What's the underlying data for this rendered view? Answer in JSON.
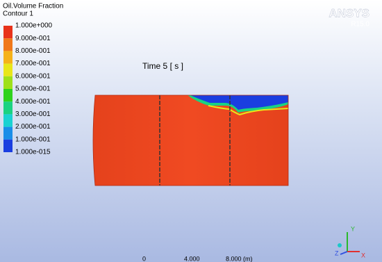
{
  "header": {
    "variable": "Oil.Volume Fraction",
    "contour": "Contour 1"
  },
  "legend": {
    "labels": [
      "1.000e+000",
      "9.000e-001",
      "8.000e-001",
      "7.000e-001",
      "6.000e-001",
      "5.000e-001",
      "4.000e-001",
      "3.000e-001",
      "2.000e-001",
      "1.000e-001",
      "1.000e-015"
    ]
  },
  "brand": {
    "name": "ANSYS",
    "version": "R15.0"
  },
  "time_label": "Time 5 [ s ]",
  "triad": {
    "y": "Y",
    "z": "Z",
    "x": "X"
  },
  "scale": {
    "labels": [
      "0",
      "4.000",
      "8.000 (m)"
    ]
  }
}
